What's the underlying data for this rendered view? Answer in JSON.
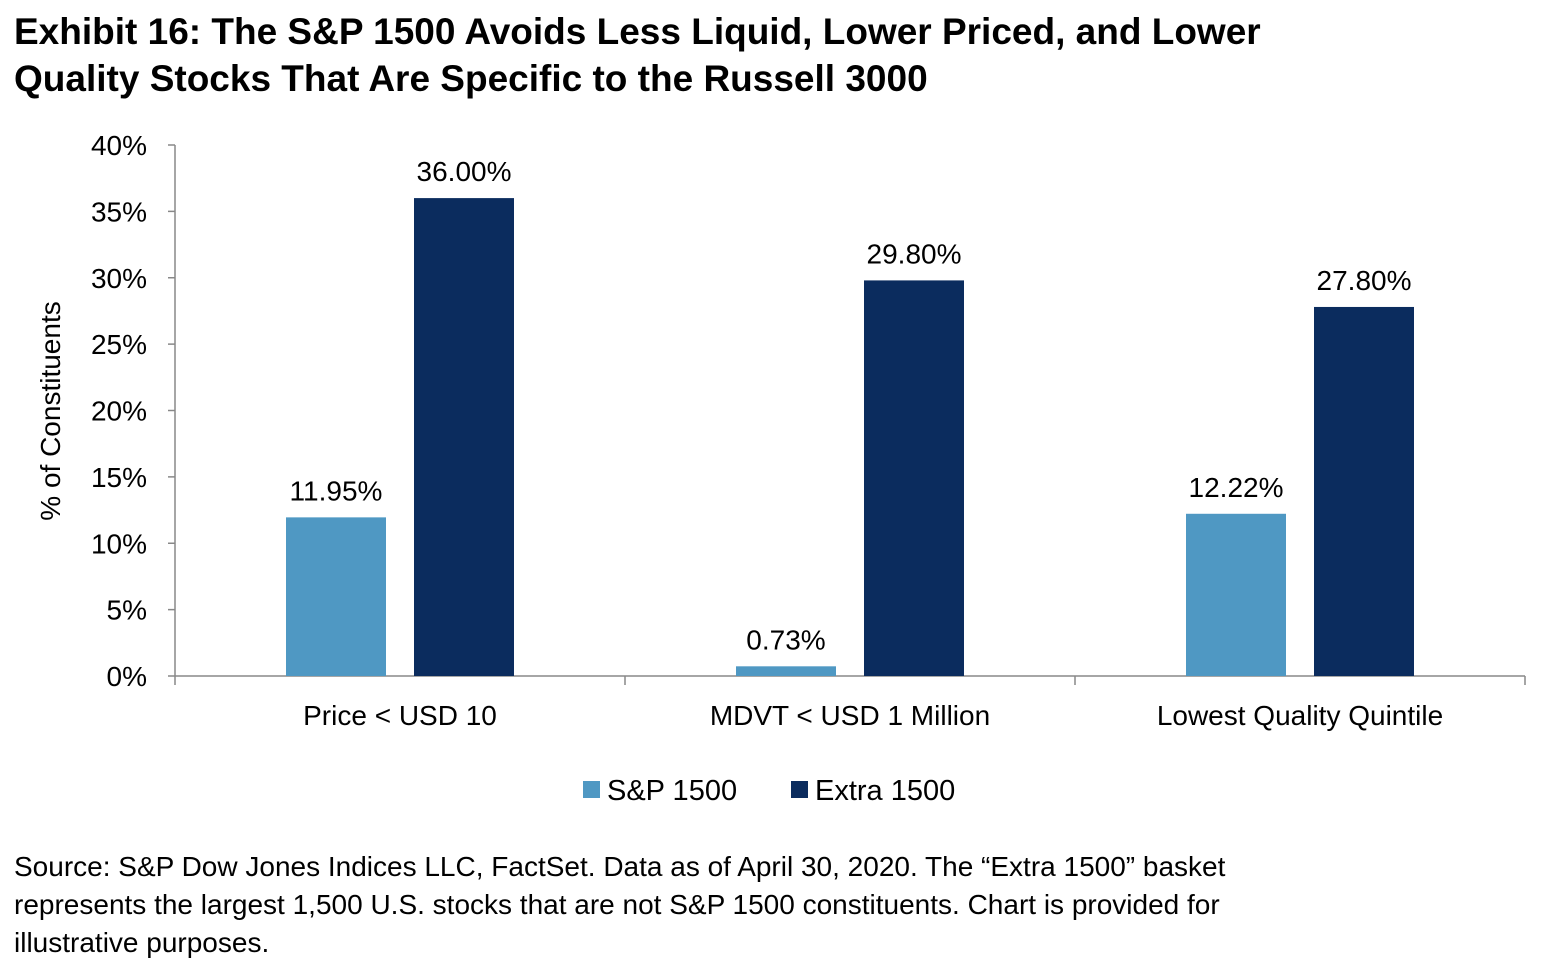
{
  "title_lines": [
    "Exhibit 16: The S&P 1500 Avoids Less Liquid, Lower Priced, and Lower",
    "Quality Stocks That Are Specific to the Russell 3000"
  ],
  "source_lines": [
    "Source: S&P Dow Jones Indices LLC, FactSet.  Data as of April 30, 2020.  The “Extra 1500” basket",
    "represents the largest 1,500 U.S. stocks that are not S&P 1500 constituents.  Chart is provided for",
    "illustrative purposes."
  ],
  "chart_data": {
    "type": "bar",
    "title": "Exhibit 16: The S&P 1500 Avoids Less Liquid, Lower Priced, and Lower Quality Stocks That Are Specific to the Russell 3000",
    "xlabel": "",
    "ylabel": "% of Constituents",
    "ylim": [
      0,
      40
    ],
    "yticks": [
      0,
      5,
      10,
      15,
      20,
      25,
      30,
      35,
      40
    ],
    "ytick_labels": [
      "0%",
      "5%",
      "10%",
      "15%",
      "20%",
      "25%",
      "30%",
      "35%",
      "40%"
    ],
    "categories": [
      "Price < USD 10",
      "MDVT < USD 1 Million",
      "Lowest Quality Quintile"
    ],
    "series": [
      {
        "name": "S&P 1500",
        "color": "#4f98c3",
        "values": [
          11.95,
          0.73,
          12.22
        ],
        "labels": [
          "11.95%",
          "0.73%",
          "12.22%"
        ]
      },
      {
        "name": "Extra 1500",
        "color": "#0b2c5e",
        "values": [
          36.0,
          29.8,
          27.8
        ],
        "labels": [
          "36.00%",
          "29.80%",
          "27.80%"
        ]
      }
    ],
    "grid": false,
    "legend": "bottom"
  }
}
